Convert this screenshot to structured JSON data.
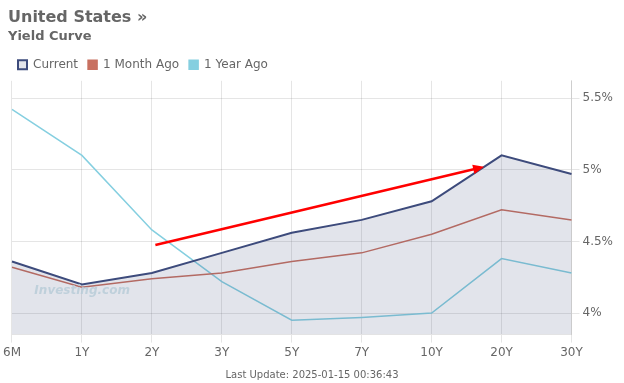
{
  "chart_data": {
    "type": "line",
    "title": "United States »",
    "subtitle": "Yield Curve",
    "categories": [
      "6M",
      "1Y",
      "2Y",
      "3Y",
      "5Y",
      "7Y",
      "10Y",
      "20Y",
      "30Y"
    ],
    "series": [
      {
        "name": "Current",
        "color": "#3d4b7c",
        "values": [
          4.36,
          4.2,
          4.28,
          4.42,
          4.56,
          4.65,
          4.78,
          5.1,
          4.97
        ]
      },
      {
        "name": "1 Month Ago",
        "color": "#c87060",
        "values": [
          4.32,
          4.18,
          4.24,
          4.28,
          4.36,
          4.42,
          4.55,
          4.72,
          4.65
        ]
      },
      {
        "name": "1 Year Ago",
        "color": "#85cfe0",
        "values": [
          5.42,
          5.1,
          4.58,
          4.22,
          3.95,
          3.97,
          4.0,
          4.38,
          4.28
        ]
      }
    ],
    "ylim": [
      3.85,
      5.62
    ],
    "yticks": [
      {
        "value": 4.0,
        "label": "4%"
      },
      {
        "value": 4.5,
        "label": "4.5%"
      },
      {
        "value": 5.0,
        "label": "5%"
      },
      {
        "value": 5.5,
        "label": "5.5%"
      }
    ],
    "grid": true,
    "legend": "upper left",
    "annotations": [
      {
        "text": "Investing.com"
      },
      {
        "text": "Last Update: 2025-01-15 00:36:43"
      },
      {
        "type": "arrow",
        "from": [
          2.05,
          4.475
        ],
        "to": [
          6.75,
          5.02
        ],
        "color": "red"
      }
    ]
  }
}
